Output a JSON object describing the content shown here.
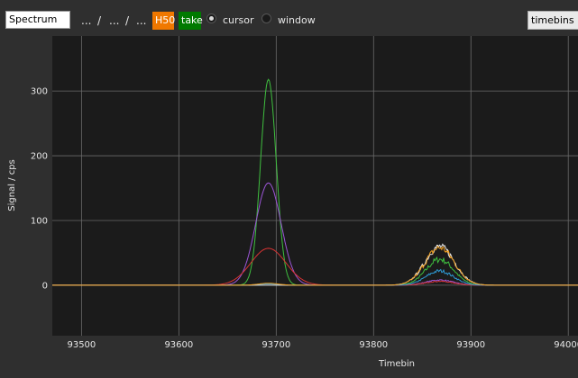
{
  "toolbar": {
    "title_input": "Spectrum",
    "crumbs": [
      "...",
      "/",
      "...",
      "/",
      "..."
    ],
    "h50_label": "H50",
    "take_label": "take",
    "radio_cursor": "cursor",
    "radio_window": "window",
    "view_select": "timebins",
    "colors": {
      "h50": "#f07800",
      "take": "#007a00"
    }
  },
  "chart_data": {
    "type": "line",
    "xlabel": "Timebin",
    "ylabel": "Signal / cps",
    "xlim": [
      93470,
      94010
    ],
    "ylim": [
      -78,
      385
    ],
    "xticks": [
      93500,
      93600,
      93700,
      93800,
      93900,
      94000
    ],
    "yticks": [
      0,
      100,
      200,
      300
    ],
    "grid": true,
    "series": [
      {
        "color": "#3fbf3f",
        "peaks": [
          {
            "center": 93692,
            "height": 318,
            "sigma": 8
          },
          {
            "center": 93868,
            "height": 40,
            "sigma": 14
          }
        ]
      },
      {
        "color": "#9b55d6",
        "peaks": [
          {
            "center": 93692,
            "height": 158,
            "sigma": 13
          },
          {
            "center": 93868,
            "height": 8,
            "sigma": 14
          }
        ]
      },
      {
        "color": "#d83333",
        "peaks": [
          {
            "center": 93692,
            "height": 57,
            "sigma": 18
          },
          {
            "center": 93868,
            "height": 6,
            "sigma": 14
          }
        ]
      },
      {
        "color": "#2e9bd6",
        "peaks": [
          {
            "center": 93692,
            "height": 2,
            "sigma": 10
          },
          {
            "center": 93868,
            "height": 22,
            "sigma": 14
          }
        ]
      },
      {
        "color": "#e8e8e8",
        "peaks": [
          {
            "center": 93868,
            "height": 60,
            "sigma": 15
          }
        ]
      },
      {
        "color": "#f2a020",
        "peaks": [
          {
            "center": 93692,
            "height": 3,
            "sigma": 10
          },
          {
            "center": 93868,
            "height": 58,
            "sigma": 15
          }
        ]
      }
    ]
  }
}
